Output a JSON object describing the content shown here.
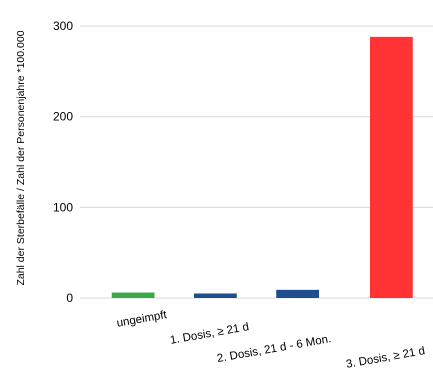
{
  "chart_data": {
    "type": "bar",
    "title": "",
    "xlabel": "",
    "ylabel": "Zahl der Sterbefälle / Zahl der Personenjahre *100.000",
    "ylim": [
      0,
      300
    ],
    "yticks": [
      0,
      100,
      200,
      300
    ],
    "grid": true,
    "categories": [
      "ungeimpft",
      "1. Dosis, ≥ 21 d",
      "2. Dosis, 21 d - 6 Mon.",
      "3. Dosis, ≥ 21 d"
    ],
    "values": [
      6,
      5,
      9,
      288
    ],
    "colors": [
      "#3aa845",
      "#1f4e8c",
      "#1f4e8c",
      "#ff3333"
    ]
  }
}
